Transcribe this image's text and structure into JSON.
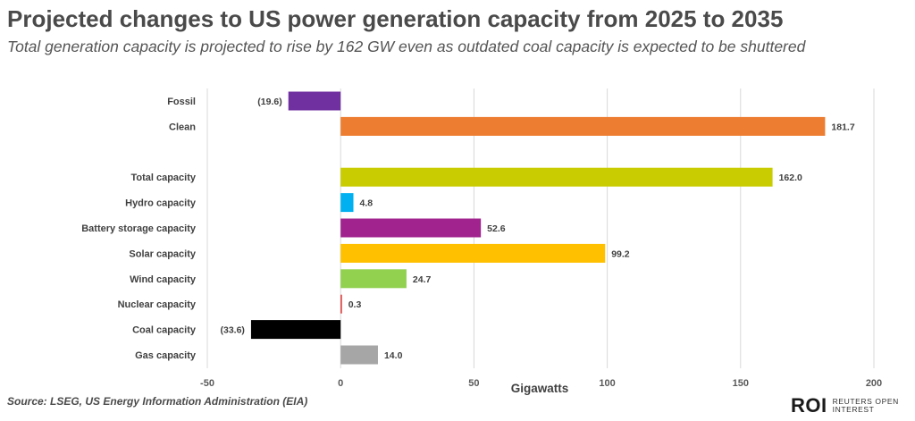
{
  "title": "Projected changes to US power generation capacity from 2025 to 2035",
  "subtitle": "Total generation capacity is projected to rise by 162 GW even as outdated coal capacity is expected to be shuttered",
  "source": "Source: LSEG, US Energy Information Administration (EIA)",
  "logo": {
    "mark": "ROI",
    "line1": "REUTERS OPEN",
    "line2": "INTEREST"
  },
  "chart_data": {
    "type": "bar",
    "orientation": "horizontal",
    "title": "Projected changes to US power generation capacity from 2025 to 2035",
    "xlabel": "Gigawatts",
    "ylabel": "",
    "xlim": [
      -50,
      200
    ],
    "xticks": [
      -50,
      0,
      50,
      100,
      150,
      200
    ],
    "grid": "vertical",
    "categories": [
      "Fossil",
      "Clean",
      "",
      "Total capacity",
      "Hydro capacity",
      "Battery storage capacity",
      "Solar capacity",
      "Wind capacity",
      "Nuclear capacity",
      "Coal capacity",
      "Gas capacity"
    ],
    "values": [
      -19.6,
      181.7,
      null,
      162.0,
      4.8,
      52.6,
      99.2,
      24.7,
      0.3,
      -33.6,
      14.0
    ],
    "data_labels": [
      "(19.6)",
      "181.7",
      "",
      "162.0",
      "4.8",
      "52.6",
      "99.2",
      "24.7",
      "0.3",
      "(33.6)",
      "14.0"
    ],
    "colors": [
      "#7030a0",
      "#ed7d31",
      "",
      "#c9cc00",
      "#00b0f0",
      "#a0238e",
      "#ffc000",
      "#92d050",
      "#e03030",
      "#000000",
      "#a6a6a6"
    ]
  }
}
